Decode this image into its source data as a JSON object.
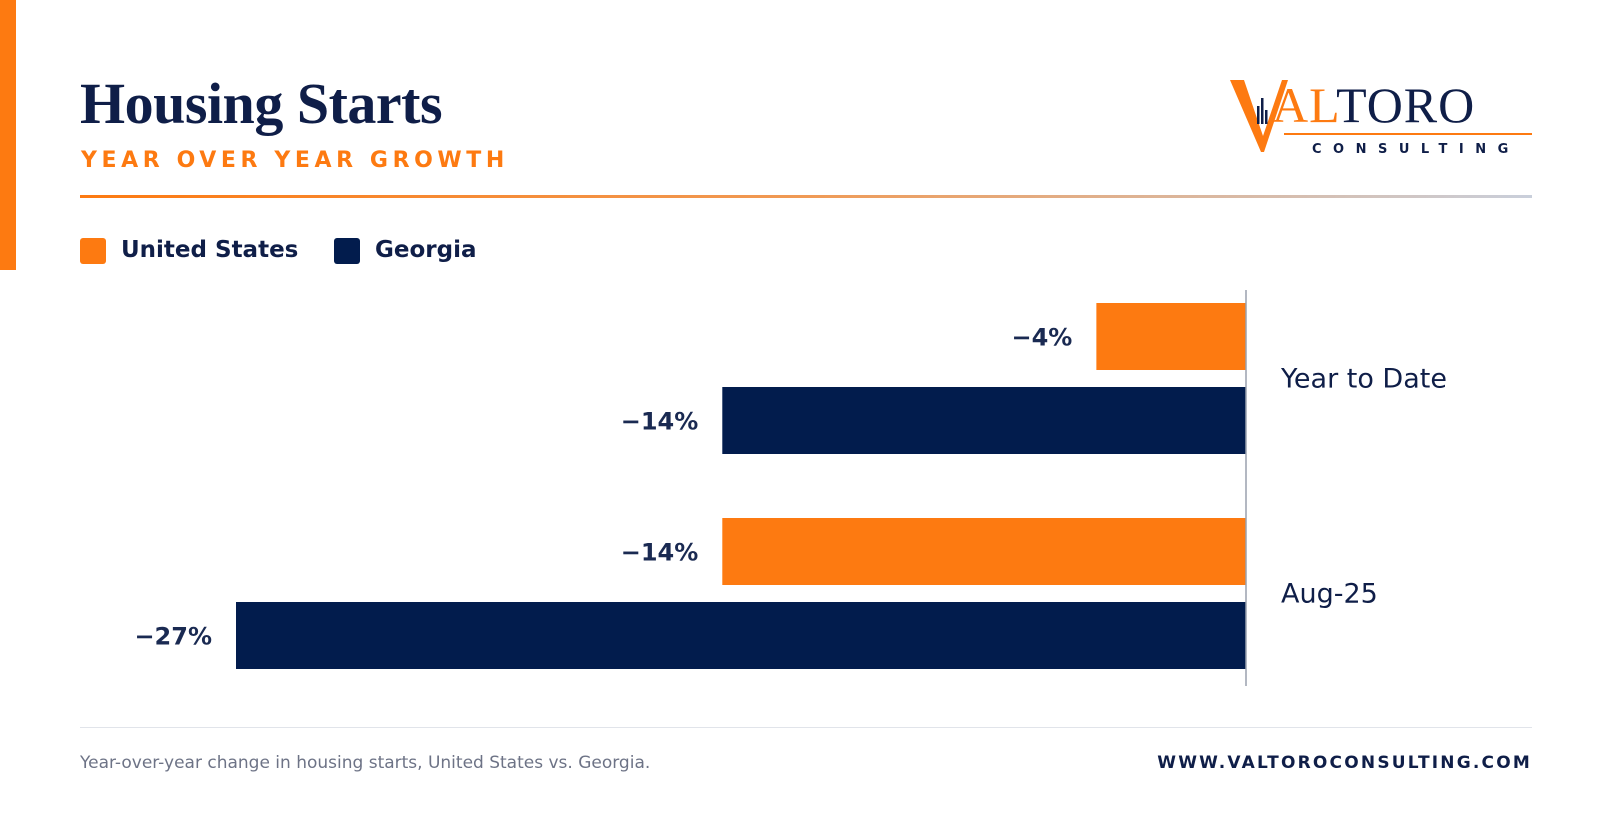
{
  "header": {
    "title": "Housing Starts",
    "subtitle": "YEAR OVER YEAR GROWTH"
  },
  "logo": {
    "text_first": "V",
    "text_accent": "AL",
    "text_rest": "TORO",
    "tagline": "CONSULTING"
  },
  "colors": {
    "accent": "#fd7a11",
    "navy": "#0f1e48",
    "united_states": "#fd7a11",
    "georgia": "#021c4d"
  },
  "legend": {
    "items": [
      {
        "label": "United States",
        "color": "#fd7a11"
      },
      {
        "label": "Georgia",
        "color": "#021c4d"
      }
    ]
  },
  "chart_data": {
    "type": "bar",
    "orientation": "horizontal",
    "categories": [
      "Year to Date",
      "Aug-25"
    ],
    "series": [
      {
        "name": "United States",
        "values": [
          -4,
          -14
        ],
        "labels": [
          "−4%",
          "−14%"
        ]
      },
      {
        "name": "Georgia",
        "values": [
          -14,
          -27
        ],
        "labels": [
          "−14%",
          "−27%"
        ]
      }
    ],
    "xlim": [
      -27,
      0
    ],
    "grid": false,
    "legend_position": "top-left"
  },
  "footer": {
    "note": "Year-over-year change in housing starts, United States vs. Georgia.",
    "url": "WWW.VALTOROCONSULTING.COM"
  }
}
